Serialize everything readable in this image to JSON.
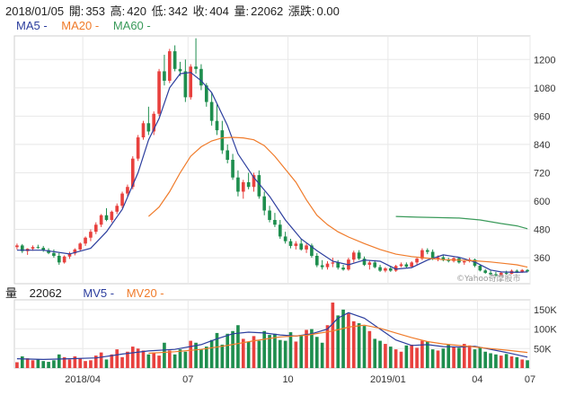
{
  "header": {
    "date": "2018/01/05",
    "open_label": "開:",
    "open": "353",
    "high_label": "高:",
    "high": "420",
    "low_label": "低:",
    "low": "342",
    "close_label": "收:",
    "close": "404",
    "volume_label": "量:",
    "volume": "22062",
    "change_label": "漲跌:",
    "change": "0.00"
  },
  "legend": {
    "ma5": "MA5 -",
    "ma20": "MA20 -",
    "ma60": "MA60 -"
  },
  "volume_header": {
    "label": "量",
    "value": "22062",
    "mv5": "MV5 -",
    "mv20": "MV20 -"
  },
  "watermark": "©Yahoo奇摩股市",
  "colors": {
    "up": "#e8413e",
    "down": "#1e8e4e",
    "ma5": "#2c3e9e",
    "ma20": "#f07b2a",
    "ma60": "#3a9a5a"
  },
  "chart_data": [
    {
      "type": "candlestick",
      "title": "",
      "ylim": [
        250,
        1300
      ],
      "yticks": [
        360,
        480,
        600,
        720,
        840,
        960,
        1080,
        1200
      ],
      "xticks": [
        "2018/04",
        "07",
        "10",
        "2019/01",
        "04",
        "07"
      ],
      "candles": [
        [
          405,
          420,
          395,
          412
        ],
        [
          412,
          418,
          380,
          388
        ],
        [
          388,
          400,
          372,
          398
        ],
        [
          398,
          412,
          390,
          405
        ],
        [
          405,
          415,
          398,
          402
        ],
        [
          402,
          410,
          385,
          392
        ],
        [
          392,
          400,
          375,
          380
        ],
        [
          380,
          395,
          360,
          368
        ],
        [
          368,
          380,
          330,
          340
        ],
        [
          340,
          370,
          335,
          365
        ],
        [
          365,
          385,
          355,
          378
        ],
        [
          378,
          400,
          370,
          395
        ],
        [
          395,
          425,
          388,
          420
        ],
        [
          420,
          450,
          410,
          445
        ],
        [
          445,
          480,
          430,
          470
        ],
        [
          470,
          510,
          460,
          500
        ],
        [
          500,
          545,
          490,
          540
        ],
        [
          540,
          570,
          515,
          520
        ],
        [
          520,
          560,
          510,
          555
        ],
        [
          555,
          590,
          545,
          580
        ],
        [
          580,
          640,
          570,
          632
        ],
        [
          632,
          670,
          620,
          660
        ],
        [
          660,
          790,
          650,
          780
        ],
        [
          780,
          880,
          770,
          870
        ],
        [
          870,
          940,
          860,
          930
        ],
        [
          930,
          1000,
          880,
          895
        ],
        [
          895,
          980,
          880,
          970
        ],
        [
          970,
          1160,
          960,
          1150
        ],
        [
          1150,
          1220,
          1090,
          1110
        ],
        [
          1110,
          1245,
          1100,
          1235
        ],
        [
          1235,
          1260,
          1150,
          1160
        ],
        [
          1160,
          1190,
          1130,
          1150
        ],
        [
          1150,
          1200,
          1020,
          1040
        ],
        [
          1040,
          1180,
          1030,
          1170
        ],
        [
          1170,
          1290,
          1140,
          1160
        ],
        [
          1160,
          1180,
          1070,
          1090
        ],
        [
          1090,
          1100,
          1000,
          1020
        ],
        [
          1020,
          1060,
          920,
          940
        ],
        [
          940,
          1010,
          880,
          900
        ],
        [
          900,
          940,
          800,
          815
        ],
        [
          815,
          840,
          760,
          775
        ],
        [
          775,
          800,
          690,
          700
        ],
        [
          700,
          730,
          620,
          640
        ],
        [
          640,
          690,
          610,
          680
        ],
        [
          680,
          720,
          650,
          660
        ],
        [
          660,
          720,
          640,
          710
        ],
        [
          710,
          730,
          610,
          620
        ],
        [
          620,
          640,
          540,
          560
        ],
        [
          560,
          580,
          510,
          520
        ],
        [
          520,
          550,
          490,
          500
        ],
        [
          500,
          520,
          440,
          450
        ],
        [
          450,
          470,
          420,
          430
        ],
        [
          430,
          440,
          400,
          410
        ],
        [
          410,
          430,
          395,
          420
        ],
        [
          420,
          440,
          390,
          395
        ],
        [
          395,
          420,
          380,
          412
        ],
        [
          412,
          420,
          360,
          368
        ],
        [
          368,
          380,
          320,
          328
        ],
        [
          328,
          350,
          310,
          320
        ],
        [
          320,
          345,
          310,
          335
        ],
        [
          335,
          360,
          320,
          340
        ],
        [
          340,
          350,
          310,
          318
        ],
        [
          318,
          330,
          305,
          310
        ],
        [
          310,
          360,
          305,
          352
        ],
        [
          352,
          390,
          340,
          382
        ],
        [
          382,
          392,
          350,
          356
        ],
        [
          356,
          365,
          325,
          330
        ],
        [
          330,
          350,
          310,
          340
        ],
        [
          340,
          350,
          315,
          320
        ],
        [
          320,
          330,
          300,
          305
        ],
        [
          305,
          320,
          298,
          315
        ],
        [
          315,
          325,
          300,
          305
        ],
        [
          305,
          330,
          300,
          325
        ],
        [
          325,
          340,
          320,
          332
        ],
        [
          332,
          340,
          318,
          322
        ],
        [
          322,
          345,
          318,
          340
        ],
        [
          340,
          360,
          330,
          356
        ],
        [
          356,
          400,
          350,
          392
        ],
        [
          392,
          400,
          375,
          385
        ],
        [
          385,
          395,
          350,
          355
        ],
        [
          355,
          370,
          345,
          362
        ],
        [
          362,
          370,
          345,
          350
        ],
        [
          350,
          360,
          340,
          346
        ],
        [
          346,
          362,
          340,
          358
        ],
        [
          358,
          360,
          335,
          340
        ],
        [
          340,
          350,
          330,
          345
        ],
        [
          345,
          360,
          340,
          352
        ],
        [
          352,
          356,
          320,
          326
        ],
        [
          326,
          332,
          302,
          306
        ],
        [
          306,
          312,
          292,
          296
        ],
        [
          296,
          305,
          285,
          290
        ],
        [
          290,
          300,
          280,
          285
        ],
        [
          285,
          300,
          282,
          296
        ],
        [
          296,
          305,
          288,
          292
        ],
        [
          292,
          310,
          290,
          305
        ],
        [
          305,
          310,
          295,
          300
        ],
        [
          300,
          312,
          296,
          308
        ],
        [
          308,
          312,
          298,
          302
        ]
      ],
      "ma5": [
        [
          0,
          392
        ],
        [
          5,
          392
        ],
        [
          10,
          376
        ],
        [
          14,
          400
        ],
        [
          17,
          470
        ],
        [
          20,
          565
        ],
        [
          23,
          720
        ],
        [
          25,
          860
        ],
        [
          27,
          950
        ],
        [
          29,
          1080
        ],
        [
          31,
          1140
        ],
        [
          33,
          1145
        ],
        [
          35,
          1110
        ],
        [
          37,
          1060
        ],
        [
          40,
          920
        ],
        [
          42,
          800
        ],
        [
          45,
          700
        ],
        [
          48,
          620
        ],
        [
          51,
          520
        ],
        [
          54,
          440
        ],
        [
          57,
          390
        ],
        [
          60,
          345
        ],
        [
          63,
          330
        ],
        [
          66,
          350
        ],
        [
          69,
          345
        ],
        [
          72,
          312
        ],
        [
          75,
          318
        ],
        [
          78,
          350
        ],
        [
          81,
          372
        ],
        [
          84,
          362
        ],
        [
          87,
          342
        ],
        [
          90,
          308
        ],
        [
          92,
          300
        ],
        [
          95,
          298
        ],
        [
          97,
          300
        ]
      ],
      "ma20": [
        [
          25,
          535
        ],
        [
          27,
          575
        ],
        [
          29,
          640
        ],
        [
          31,
          720
        ],
        [
          33,
          790
        ],
        [
          35,
          830
        ],
        [
          37,
          855
        ],
        [
          39,
          868
        ],
        [
          41,
          870
        ],
        [
          43,
          868
        ],
        [
          45,
          860
        ],
        [
          47,
          835
        ],
        [
          49,
          790
        ],
        [
          51,
          735
        ],
        [
          53,
          680
        ],
        [
          55,
          605
        ],
        [
          57,
          540
        ],
        [
          59,
          500
        ],
        [
          61,
          470
        ],
        [
          63,
          448
        ],
        [
          66,
          420
        ],
        [
          69,
          395
        ],
        [
          72,
          375
        ],
        [
          75,
          365
        ],
        [
          78,
          358
        ],
        [
          81,
          352
        ],
        [
          84,
          350
        ],
        [
          87,
          347
        ],
        [
          90,
          342
        ],
        [
          93,
          335
        ],
        [
          95,
          330
        ],
        [
          97,
          320
        ]
      ],
      "ma60": [
        [
          72,
          535
        ],
        [
          76,
          532
        ],
        [
          80,
          530
        ],
        [
          84,
          528
        ],
        [
          88,
          520
        ],
        [
          92,
          505
        ],
        [
          95,
          495
        ],
        [
          97,
          483
        ]
      ]
    },
    {
      "type": "bar",
      "title": "",
      "ylim": [
        0,
        175000
      ],
      "yticks": [
        50000,
        100000,
        150000
      ],
      "ytick_labels": [
        "50K",
        "100K",
        "150K"
      ],
      "volumes": [
        15000,
        30000,
        25000,
        20000,
        22000,
        18000,
        16000,
        20000,
        35000,
        28000,
        22000,
        30000,
        25000,
        18000,
        20000,
        32000,
        40000,
        22000,
        35000,
        48000,
        28000,
        42000,
        55000,
        50000,
        45000,
        35000,
        40000,
        32000,
        65000,
        45000,
        35000,
        48000,
        42000,
        70000,
        65000,
        48000,
        55000,
        72000,
        90000,
        60000,
        88000,
        95000,
        110000,
        75000,
        68000,
        82000,
        70000,
        95000,
        85000,
        88000,
        72000,
        70000,
        92000,
        68000,
        85000,
        98000,
        100000,
        80000,
        65000,
        110000,
        168000,
        135000,
        150000,
        140000,
        120000,
        115000,
        108000,
        95000,
        75000,
        70000,
        62000,
        55000,
        48000,
        42000,
        58000,
        60000,
        52000,
        70000,
        68000,
        48000,
        45000,
        50000,
        60000,
        55000,
        52000,
        62000,
        58000,
        48000,
        52000,
        42000,
        38000,
        35000,
        32000,
        36000,
        30000,
        28000,
        22000,
        20000
      ],
      "mv5": [
        [
          0,
          24000
        ],
        [
          5,
          22000
        ],
        [
          10,
          24000
        ],
        [
          15,
          26000
        ],
        [
          20,
          36000
        ],
        [
          25,
          44000
        ],
        [
          30,
          48000
        ],
        [
          35,
          60000
        ],
        [
          38,
          75000
        ],
        [
          41,
          88000
        ],
        [
          44,
          92000
        ],
        [
          47,
          90000
        ],
        [
          50,
          85000
        ],
        [
          53,
          82000
        ],
        [
          56,
          88000
        ],
        [
          59,
          100000
        ],
        [
          61,
          128000
        ],
        [
          63,
          142000
        ],
        [
          66,
          128000
        ],
        [
          69,
          100000
        ],
        [
          72,
          72000
        ],
        [
          75,
          58000
        ],
        [
          78,
          60000
        ],
        [
          81,
          55000
        ],
        [
          84,
          54000
        ],
        [
          87,
          56000
        ],
        [
          90,
          48000
        ],
        [
          93,
          40000
        ],
        [
          97,
          28000
        ]
      ],
      "mv20": [
        [
          25,
          38000
        ],
        [
          30,
          42000
        ],
        [
          35,
          48000
        ],
        [
          40,
          58000
        ],
        [
          45,
          70000
        ],
        [
          50,
          80000
        ],
        [
          55,
          84000
        ],
        [
          60,
          95000
        ],
        [
          63,
          105000
        ],
        [
          66,
          110000
        ],
        [
          69,
          102000
        ],
        [
          72,
          90000
        ],
        [
          75,
          78000
        ],
        [
          78,
          68000
        ],
        [
          81,
          62000
        ],
        [
          84,
          58000
        ],
        [
          87,
          54000
        ],
        [
          90,
          50000
        ],
        [
          93,
          46000
        ],
        [
          97,
          40000
        ]
      ]
    }
  ]
}
